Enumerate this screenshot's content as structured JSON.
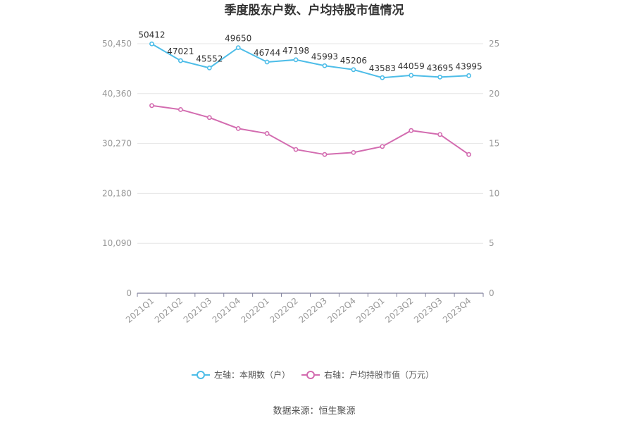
{
  "chart_data": {
    "type": "line",
    "title": "季度股东户数、户均持股市值情况",
    "categories": [
      "2021Q1",
      "2021Q2",
      "2021Q3",
      "2021Q4",
      "2022Q1",
      "2022Q2",
      "2022Q3",
      "2022Q4",
      "2023Q1",
      "2023Q2",
      "2023Q3",
      "2023Q4"
    ],
    "left_axis": {
      "ticks": [
        "0",
        "10,090",
        "20,180",
        "30,270",
        "40,360",
        "50,450"
      ],
      "min": 0,
      "max": 50450
    },
    "right_axis": {
      "ticks": [
        "0",
        "5",
        "10",
        "15",
        "20",
        "25"
      ],
      "min": 0,
      "max": 25
    },
    "series": [
      {
        "name": "左轴：本期数（户）",
        "axis": "left",
        "color": "#4dbde8",
        "values": [
          50412,
          47021,
          45552,
          49650,
          46744,
          47198,
          45993,
          45206,
          43583,
          44059,
          43695,
          43995
        ],
        "labels": [
          "50412",
          "47021",
          "45552",
          "49650",
          "46744",
          "47198",
          "45993",
          "45206",
          "43583",
          "44059",
          "43695",
          "43995"
        ]
      },
      {
        "name": "右轴：户均持股市值（万元）",
        "axis": "right",
        "color": "#d36cb0",
        "values": [
          18.8,
          18.4,
          17.6,
          16.5,
          16.0,
          14.4,
          13.9,
          14.1,
          14.7,
          16.3,
          15.9,
          13.9
        ]
      }
    ],
    "legend_position": "bottom",
    "grid": true
  },
  "source": "数据来源：恒生聚源"
}
